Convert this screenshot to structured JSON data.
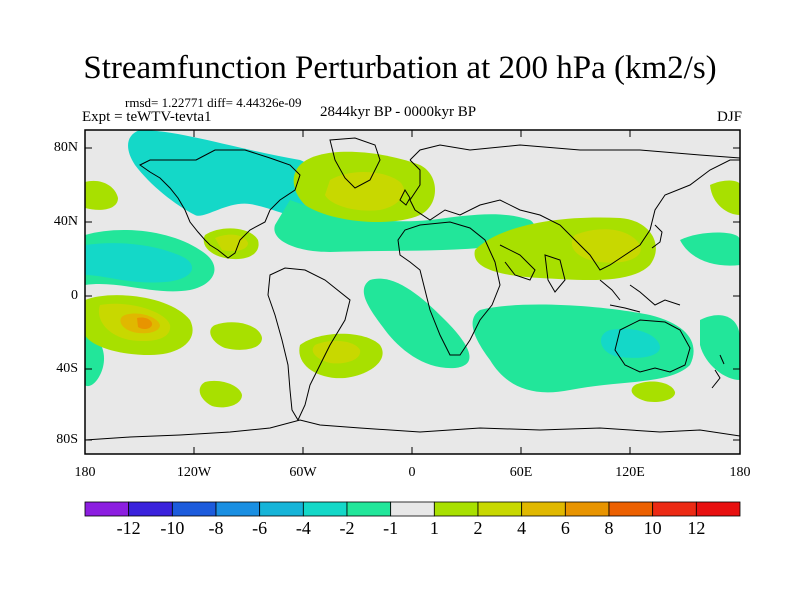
{
  "title": "Streamfunction Perturbation at 200 hPa (km2/s)",
  "stats": "rmsd= 1.22771 diff= 4.44326e-09",
  "experiment": "Expt = teWTV-tevta1",
  "period": "2844kyr BP - 0000kyr BP",
  "season": "DJF",
  "map": {
    "lat_labels": [
      "80N",
      "40N",
      "0",
      "40S",
      "80S"
    ],
    "lon_labels": [
      "180",
      "120W",
      "60W",
      "0",
      "60E",
      "120E",
      "180"
    ],
    "background_color": "#e8e8e8"
  },
  "colorbar": {
    "labels": [
      "-12",
      "-10",
      "-8",
      "-6",
      "-4",
      "-2",
      "-1",
      "1",
      "2",
      "4",
      "6",
      "8",
      "10",
      "12"
    ],
    "colors": [
      "#8c1ee0",
      "#3a22dc",
      "#1c5bdc",
      "#1a8fe2",
      "#16b4d8",
      "#14d8c8",
      "#22e69a",
      "#e8e8e8",
      "#a8e000",
      "#c8d800",
      "#e0b800",
      "#e89400",
      "#ec6000",
      "#ec2a14",
      "#e81010"
    ]
  }
}
